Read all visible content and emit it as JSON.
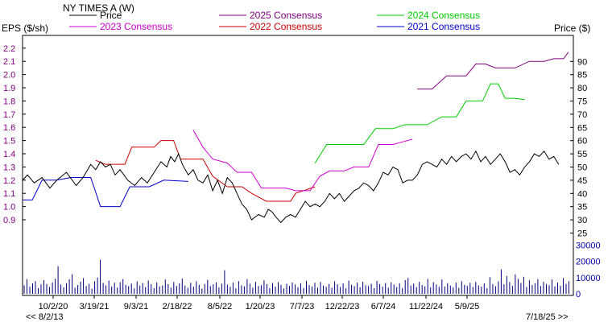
{
  "chart_data": {
    "type": "line",
    "title": "NY TIMES  A (W)",
    "left_axis_label": "EPS ($/sh)",
    "right_axis_label": "Price ($)",
    "nav_left": "<< 8/2/13",
    "nav_right": "7/18/25 >>",
    "x_tick_labels": [
      "10/2/20",
      "3/19/21",
      "9/3/21",
      "2/18/22",
      "8/5/22",
      "1/20/23",
      "7/7/23",
      "12/22/23",
      "6/7/24",
      "11/22/24",
      "5/9/25"
    ],
    "x_range": [
      0.0,
      5.0
    ],
    "eps_axis": {
      "ticks": [
        0.9,
        1.0,
        1.1,
        1.2,
        1.3,
        1.4,
        1.5,
        1.6,
        1.7,
        1.8,
        1.9,
        2.0,
        2.1,
        2.2
      ],
      "range": [
        0.9,
        2.2
      ]
    },
    "price_axis": {
      "ticks": [
        25,
        30,
        35,
        40,
        45,
        50,
        55,
        60,
        65,
        70,
        75,
        80,
        85,
        90
      ],
      "range": [
        25,
        90
      ]
    },
    "volume_axis": {
      "ticks": [
        0,
        10000,
        20000,
        30000
      ],
      "range": [
        0,
        30000
      ]
    },
    "legend": [
      {
        "name": "Price",
        "color": "#000000"
      },
      {
        "name": "2023 Consensus",
        "color": "#cc00cc"
      },
      {
        "name": "2025 Consensus",
        "color": "#800080"
      },
      {
        "name": "2022 Consensus",
        "color": "#cc0000"
      },
      {
        "name": "2024 Consensus",
        "color": "#00cc00"
      },
      {
        "name": "2021 Consensus",
        "color": "#0000cc"
      }
    ],
    "price_series": {
      "name": "Price",
      "color": "#000000",
      "points": [
        [
          0.0,
          45
        ],
        [
          0.05,
          47
        ],
        [
          0.12,
          44
        ],
        [
          0.2,
          46
        ],
        [
          0.28,
          42
        ],
        [
          0.35,
          45
        ],
        [
          0.45,
          48
        ],
        [
          0.55,
          43
        ],
        [
          0.62,
          46
        ],
        [
          0.7,
          51
        ],
        [
          0.75,
          49
        ],
        [
          0.8,
          52
        ],
        [
          0.85,
          50
        ],
        [
          0.9,
          51
        ],
        [
          0.95,
          47
        ],
        [
          1.0,
          49
        ],
        [
          1.08,
          45
        ],
        [
          1.15,
          43
        ],
        [
          1.22,
          46
        ],
        [
          1.28,
          44
        ],
        [
          1.35,
          48
        ],
        [
          1.42,
          52
        ],
        [
          1.48,
          50
        ],
        [
          1.52,
          54
        ],
        [
          1.56,
          52
        ],
        [
          1.6,
          55
        ],
        [
          1.64,
          51
        ],
        [
          1.7,
          47
        ],
        [
          1.75,
          49
        ],
        [
          1.8,
          45
        ],
        [
          1.85,
          44
        ],
        [
          1.9,
          47
        ],
        [
          1.95,
          41
        ],
        [
          2.0,
          45
        ],
        [
          2.05,
          40
        ],
        [
          2.1,
          46
        ],
        [
          2.15,
          44
        ],
        [
          2.2,
          40
        ],
        [
          2.25,
          36
        ],
        [
          2.3,
          34
        ],
        [
          2.35,
          30
        ],
        [
          2.42,
          32
        ],
        [
          2.48,
          31
        ],
        [
          2.52,
          34
        ],
        [
          2.56,
          33
        ],
        [
          2.6,
          31
        ],
        [
          2.65,
          29
        ],
        [
          2.7,
          31
        ],
        [
          2.75,
          32
        ],
        [
          2.8,
          31
        ],
        [
          2.85,
          34
        ],
        [
          2.9,
          37
        ],
        [
          2.95,
          35
        ],
        [
          3.0,
          36
        ],
        [
          3.05,
          35
        ],
        [
          3.1,
          37
        ],
        [
          3.15,
          40
        ],
        [
          3.2,
          38
        ],
        [
          3.25,
          40
        ],
        [
          3.3,
          37
        ],
        [
          3.35,
          39
        ],
        [
          3.4,
          41
        ],
        [
          3.45,
          42
        ],
        [
          3.5,
          44
        ],
        [
          3.55,
          43
        ],
        [
          3.6,
          41
        ],
        [
          3.65,
          44
        ],
        [
          3.7,
          48
        ],
        [
          3.75,
          47
        ],
        [
          3.8,
          50
        ],
        [
          3.85,
          49
        ],
        [
          3.9,
          44
        ],
        [
          3.95,
          45
        ],
        [
          4.0,
          45
        ],
        [
          4.05,
          47
        ],
        [
          4.1,
          51
        ],
        [
          4.15,
          52
        ],
        [
          4.2,
          51
        ],
        [
          4.25,
          50
        ],
        [
          4.3,
          53
        ],
        [
          4.35,
          51
        ],
        [
          4.4,
          54
        ],
        [
          4.45,
          52
        ],
        [
          4.5,
          54
        ],
        [
          4.55,
          55
        ],
        [
          4.6,
          53
        ],
        [
          4.65,
          56
        ],
        [
          4.7,
          52
        ],
        [
          4.75,
          54
        ],
        [
          4.8,
          51
        ],
        [
          4.85,
          53
        ],
        [
          4.9,
          55
        ],
        [
          4.95,
          52
        ],
        [
          5.0,
          48
        ],
        [
          5.05,
          49
        ],
        [
          5.1,
          47
        ],
        [
          5.15,
          50
        ],
        [
          5.2,
          52
        ],
        [
          5.25,
          55
        ],
        [
          5.3,
          54
        ],
        [
          5.35,
          56
        ],
        [
          5.4,
          53
        ],
        [
          5.45,
          54
        ],
        [
          5.5,
          51
        ]
      ]
    },
    "consensus_series": [
      {
        "name": "2021 Consensus",
        "color": "#0000cc",
        "points": [
          [
            0.0,
            1.05
          ],
          [
            0.1,
            1.05
          ],
          [
            0.2,
            1.2
          ],
          [
            0.35,
            1.2
          ],
          [
            0.5,
            1.22
          ],
          [
            0.7,
            1.22
          ],
          [
            0.8,
            1.0
          ],
          [
            1.0,
            1.0
          ],
          [
            1.1,
            1.15
          ],
          [
            1.3,
            1.15
          ],
          [
            1.45,
            1.2
          ],
          [
            1.7,
            1.19
          ]
        ]
      },
      {
        "name": "2022 Consensus",
        "color": "#cc0000",
        "points": [
          [
            0.75,
            1.35
          ],
          [
            0.85,
            1.32
          ],
          [
            1.05,
            1.32
          ],
          [
            1.12,
            1.45
          ],
          [
            1.35,
            1.45
          ],
          [
            1.42,
            1.5
          ],
          [
            1.55,
            1.5
          ],
          [
            1.62,
            1.36
          ],
          [
            1.85,
            1.36
          ],
          [
            1.95,
            1.23
          ],
          [
            2.1,
            1.15
          ],
          [
            2.25,
            1.15
          ],
          [
            2.35,
            1.1
          ],
          [
            2.5,
            1.04
          ],
          [
            2.75,
            1.04
          ],
          [
            2.8,
            1.1
          ],
          [
            3.0,
            1.15
          ]
        ]
      },
      {
        "name": "2023 Consensus",
        "color": "#cc00cc",
        "points": [
          [
            1.75,
            1.58
          ],
          [
            1.85,
            1.45
          ],
          [
            1.95,
            1.36
          ],
          [
            2.1,
            1.33
          ],
          [
            2.2,
            1.26
          ],
          [
            2.35,
            1.26
          ],
          [
            2.45,
            1.14
          ],
          [
            2.7,
            1.14
          ],
          [
            2.8,
            1.12
          ],
          [
            2.95,
            1.12
          ],
          [
            3.05,
            1.23
          ],
          [
            3.15,
            1.27
          ],
          [
            3.3,
            1.27
          ],
          [
            3.4,
            1.3
          ],
          [
            3.55,
            1.3
          ],
          [
            3.65,
            1.47
          ],
          [
            3.8,
            1.47
          ],
          [
            3.9,
            1.49
          ],
          [
            4.0,
            1.51
          ]
        ]
      },
      {
        "name": "2024 Consensus",
        "color": "#00cc00",
        "points": [
          [
            3.0,
            1.33
          ],
          [
            3.12,
            1.47
          ],
          [
            3.5,
            1.47
          ],
          [
            3.62,
            1.59
          ],
          [
            3.8,
            1.59
          ],
          [
            3.92,
            1.62
          ],
          [
            4.15,
            1.62
          ],
          [
            4.3,
            1.68
          ],
          [
            4.45,
            1.68
          ],
          [
            4.55,
            1.8
          ],
          [
            4.72,
            1.8
          ],
          [
            4.8,
            1.93
          ],
          [
            4.88,
            1.93
          ],
          [
            4.95,
            1.82
          ],
          [
            5.05,
            1.82
          ],
          [
            5.15,
            1.81
          ]
        ]
      },
      {
        "name": "2025 Consensus",
        "color": "#800080",
        "points": [
          [
            4.05,
            1.89
          ],
          [
            4.2,
            1.89
          ],
          [
            4.35,
            1.99
          ],
          [
            4.55,
            1.99
          ],
          [
            4.65,
            2.08
          ],
          [
            4.75,
            2.08
          ],
          [
            4.85,
            2.05
          ],
          [
            5.05,
            2.05
          ],
          [
            5.2,
            2.1
          ],
          [
            5.35,
            2.1
          ],
          [
            5.45,
            2.12
          ],
          [
            5.55,
            2.12
          ],
          [
            5.6,
            2.17
          ]
        ]
      }
    ],
    "volume_bars": [
      5200,
      9000,
      4300,
      6500,
      7800,
      3500,
      5900,
      8400,
      6100,
      4200,
      7000,
      9300,
      17000,
      5800,
      4000,
      6600,
      8900,
      12000,
      3700,
      5400,
      7500,
      9700,
      4800,
      6200,
      3100,
      7800,
      10000,
      21000,
      6700,
      5200,
      8100,
      4500,
      6900,
      3900,
      7200,
      9000,
      5500,
      4700,
      6300,
      3300,
      7600,
      5000,
      6600,
      4100,
      8200,
      5900,
      3600,
      7000,
      4600,
      5200,
      8800,
      6000,
      3800,
      7300,
      4900,
      6500,
      9400,
      5100,
      3700,
      6800,
      4400,
      7700,
      5600,
      3200,
      6100,
      8600,
      4800,
      5900,
      7100,
      3900,
      6300,
      14500,
      5700,
      4300,
      6900,
      3400,
      7800,
      5200,
      4600,
      9000,
      6200,
      3800,
      7400,
      4800,
      5300,
      8300,
      6000,
      3500,
      6700,
      4400,
      7200,
      5500,
      3300,
      6200,
      4900,
      7000,
      5800,
      4100,
      6600,
      3600,
      8000,
      5400,
      4500,
      6800,
      3900,
      7300,
      5000,
      4300,
      6100,
      3700,
      7700,
      5900,
      4200,
      6400,
      3400,
      8100,
      5600,
      4700,
      6900,
      4000,
      7500,
      5300,
      4800,
      6200,
      3500,
      7900,
      6100,
      4400,
      6700,
      3800,
      7100,
      5700,
      4200,
      6500,
      3600,
      8400,
      9800,
      5000,
      6300,
      4100,
      7400,
      5400,
      4600,
      9200,
      3900,
      7200,
      5800,
      4300,
      8800,
      4500,
      6600,
      5100,
      4000,
      6900,
      3700,
      7800,
      5500,
      4900,
      6800,
      4200,
      7300,
      5200,
      4400,
      6400,
      3500,
      10200,
      6000,
      4700,
      7600,
      15000,
      5900,
      11000,
      7300,
      4900,
      12000,
      9200,
      6700,
      10500,
      4200,
      8300,
      5400,
      6500,
      9000,
      4800,
      7400,
      6100,
      5300,
      8800,
      4600,
      6900,
      5000,
      9700,
      6200,
      7800
    ]
  }
}
